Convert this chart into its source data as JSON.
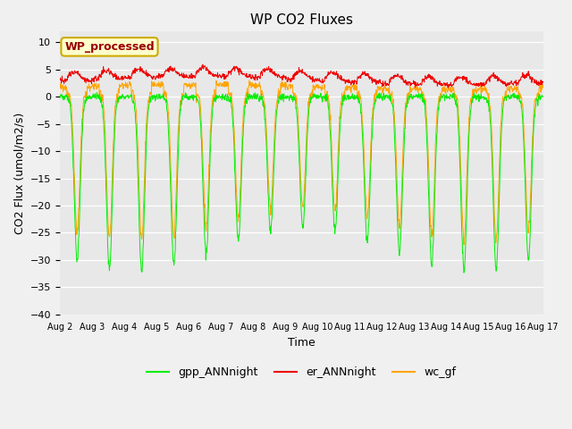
{
  "title": "WP CO2 Fluxes",
  "xlabel": "Time",
  "ylabel_display": "CO2 Flux (umol/m2/s)",
  "ylim": [
    -40,
    12
  ],
  "yticks": [
    -40,
    -35,
    -30,
    -25,
    -20,
    -15,
    -10,
    -5,
    0,
    5,
    10
  ],
  "xlim_days": [
    2,
    17
  ],
  "x_tick_days": [
    2,
    3,
    4,
    5,
    6,
    7,
    8,
    9,
    10,
    11,
    12,
    13,
    14,
    15,
    16,
    17
  ],
  "x_tick_labels": [
    "Aug 2",
    "Aug 3",
    "Aug 4",
    "Aug 5",
    "Aug 6",
    "Aug 7",
    "Aug 8",
    "Aug 9",
    "Aug 10",
    "Aug 11",
    "Aug 12",
    "Aug 13",
    "Aug 14",
    "Aug 15",
    "Aug 16",
    "Aug 17"
  ],
  "colors": {
    "gpp": "#00ee00",
    "er": "#ee0000",
    "wc": "#ffa500",
    "plot_bg": "#e8e8e8",
    "fig_bg": "#f0f0f0",
    "grid": "#ffffff"
  },
  "annotation_text": "WP_processed",
  "annotation_bg": "#ffffcc",
  "annotation_edge": "#ccaa00",
  "annotation_text_color": "#990000",
  "legend_labels": [
    "gpp_ANNnight",
    "er_ANNnight",
    "wc_gf"
  ],
  "n_days": 15,
  "points_per_day": 96,
  "seed": 12345
}
